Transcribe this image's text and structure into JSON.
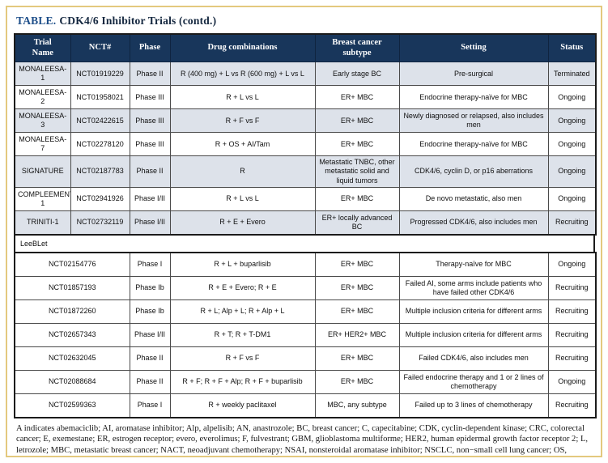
{
  "title": {
    "prefix": "TABLE.",
    "text": "CDK4/6 Inhibitor Trials (contd.)"
  },
  "colors": {
    "header_bg": "#18365b",
    "stripe_row_bg": "#dde2ea",
    "frame_border": "#e3c97e",
    "title_prefix": "#1d4e89",
    "title_text": "#14273f"
  },
  "table": {
    "columns": [
      "Trial\nName",
      "NCT#",
      "Phase",
      "Drug combinations",
      "Breast cancer\nsubtype",
      "Setting",
      "Status"
    ],
    "rows": [
      {
        "name": "MONALEESA-1",
        "nct": "NCT01919229",
        "phase": "Phase II",
        "drugs": "R (400 mg) + L vs R (600 mg) + L vs L",
        "subtype": "Early stage BC",
        "setting": "Pre-surgical",
        "status": "Terminated"
      },
      {
        "name": "MONALEESA-2",
        "nct": "NCT01958021",
        "phase": "Phase III",
        "drugs": "R + L vs L",
        "subtype": "ER+ MBC",
        "setting": "Endocrine therapy-naïve for MBC",
        "status": "Ongoing"
      },
      {
        "name": "MONALEESA-3",
        "nct": "NCT02422615",
        "phase": "Phase III",
        "drugs": "R + F vs F",
        "subtype": "ER+ MBC",
        "setting": "Newly diagnosed or relapsed, also includes men",
        "status": "Ongoing"
      },
      {
        "name": "MONALEESA-7",
        "nct": "NCT02278120",
        "phase": "Phase III",
        "drugs": "R + OS + AI/Tam",
        "subtype": "ER+ MBC",
        "setting": "Endocrine therapy-naïve for MBC",
        "status": "Ongoing"
      },
      {
        "name": "SIGNATURE",
        "nct": "NCT02187783",
        "phase": "Phase II",
        "drugs": "R",
        "subtype": "Metastatic TNBC, other metastatic solid and liquid tumors",
        "setting": "CDK4/6, cyclin D, or p16 aberrations",
        "status": "Ongoing"
      },
      {
        "name": "COMPLEEMENT-1",
        "nct": "NCT02941926",
        "phase": "Phase I/II",
        "drugs": "R + L vs L",
        "subtype": "ER+ MBC",
        "setting": "De novo metastatic, also men",
        "status": "Ongoing"
      },
      {
        "name": "TRINITI-1",
        "nct": "NCT02732119",
        "phase": "Phase I/II",
        "drugs": "R + E + Evero",
        "subtype": "ER+ locally advanced BC",
        "setting": "Progressed CDK4/6, also includes men",
        "status": "Recruiting"
      }
    ],
    "section_label": "LeeBLet",
    "section_rows": [
      {
        "nct": "NCT02154776",
        "phase": "Phase I",
        "drugs": "R + L + buparlisib",
        "subtype": "ER+ MBC",
        "setting": "Therapy-naïve for MBC",
        "status": "Ongoing"
      },
      {
        "nct": "NCT01857193",
        "phase": "Phase Ib",
        "drugs": "R + E + Evero; R + E",
        "subtype": "ER+ MBC",
        "setting": "Failed AI, some arms include patients who have failed other CDK4/6",
        "status": "Recruiting"
      },
      {
        "nct": "NCT01872260",
        "phase": "Phase Ib",
        "drugs": "R + L; Alp + L; R + Alp + L",
        "subtype": "ER+ MBC",
        "setting": "Multiple inclusion criteria for different arms",
        "status": "Recruiting"
      },
      {
        "nct": "NCT02657343",
        "phase": "Phase I/II",
        "drugs": "R + T; R + T-DM1",
        "subtype": "ER+ HER2+ MBC",
        "setting": "Multiple inclusion criteria for different arms",
        "status": "Recruiting"
      },
      {
        "nct": "NCT02632045",
        "phase": "Phase II",
        "drugs": "R + F vs F",
        "subtype": "ER+ MBC",
        "setting": "Failed CDK4/6, also includes men",
        "status": "Recruiting"
      },
      {
        "nct": "NCT02088684",
        "phase": "Phase II",
        "drugs": "R + F; R + F + Alp; R + F + buparlisib",
        "subtype": "ER+ MBC",
        "setting": "Failed endocrine therapy and 1 or 2 lines of chemotherapy",
        "status": "Ongoing"
      },
      {
        "nct": "NCT02599363",
        "phase": "Phase I",
        "drugs": "R + weekly paclitaxel",
        "subtype": "MBC, any subtype",
        "setting": "Failed up to 3 lines of chemotherapy",
        "status": "Recruiting"
      }
    ]
  },
  "footnote": "A indicates abemaciclib; AI, aromatase inhibitor; Alp, alpelisib; AN, anastrozole; BC, breast cancer; C, capecitabine; CDK, cyclin-dependent kinase; CRC, colorectal cancer; E, exemestane; ER, estrogen receptor; evero, everolimus; F, fulvestrant; GBM, glioblastoma multiforme; HER2, human epidermal growth factor receptor 2; L, letrozole; MBC, metastatic breast cancer; NACT, neoadjuvant chemotherapy; NSAI, nonsteroidal aromatase inhibitor; NSCLC, non−small cell lung cancer; OS, ovarian suppression; P, palbociclib; pCR, pathologic complete response; R, ribociclib; Rb, retinoblastoma; T, trastuzumab; Tam, tamoxifen; T-DM1, ado-trastuzumab emtansine; TNBC, triple-negative breast cancer."
}
